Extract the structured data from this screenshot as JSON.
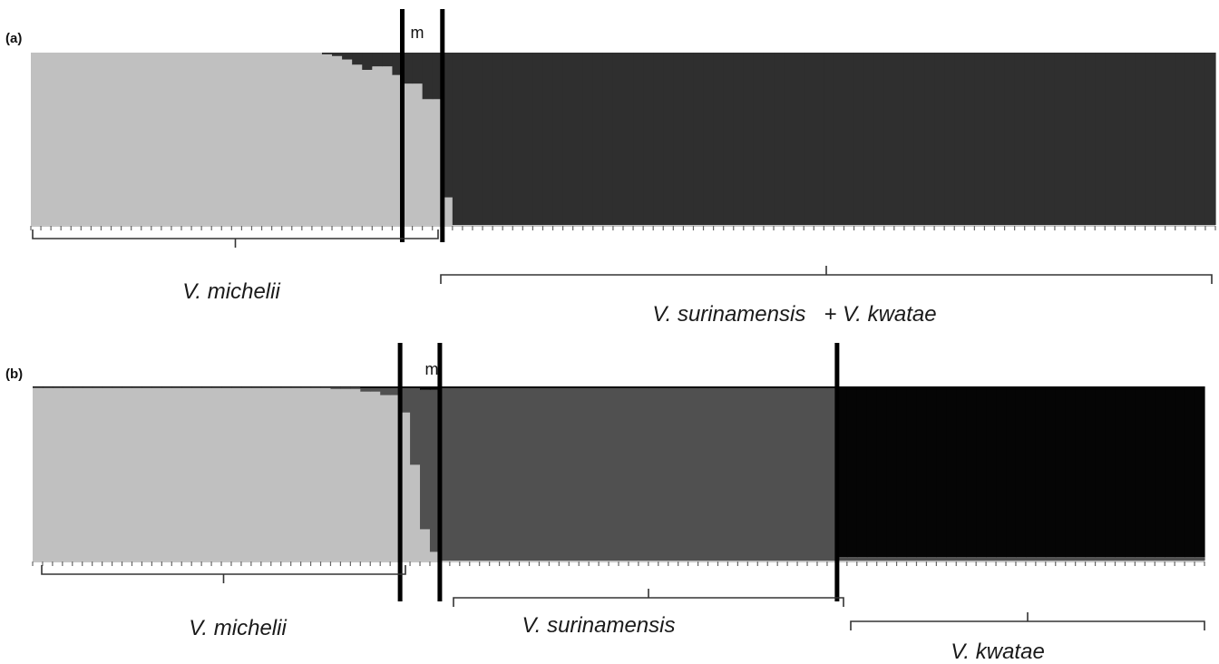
{
  "colors": {
    "cluster_light": "#c0c0c0",
    "cluster_mid": "#505050",
    "cluster_dark_a": "#2f2f2f",
    "cluster_dark_b": "#050505",
    "divider": "#000000",
    "bracket": "#333333"
  },
  "chart_data": [
    {
      "type": "bar",
      "stacked": true,
      "panel_label": "(a)",
      "marker_label": "m",
      "ylim": [
        0,
        1
      ],
      "n_individuals": 118,
      "divider_after_individual": [
        37,
        41
      ],
      "series": [
        {
          "color": "#c0c0c0",
          "segments": [
            {
              "count": 29,
              "value": 1.0
            },
            {
              "count": 1,
              "value": 0.99
            },
            {
              "count": 1,
              "value": 0.98
            },
            {
              "count": 1,
              "value": 0.96
            },
            {
              "count": 1,
              "value": 0.93
            },
            {
              "count": 1,
              "value": 0.9
            },
            {
              "count": 2,
              "value": 0.92
            },
            {
              "count": 1,
              "value": 0.87
            },
            {
              "count": 2,
              "value": 0.82
            },
            {
              "count": 2,
              "value": 0.73
            },
            {
              "count": 1,
              "value": 0.16
            },
            {
              "count": 76,
              "value": 0.0
            }
          ]
        },
        {
          "color": "#2f2f2f",
          "segments": [
            {
              "count": 29,
              "value": 0.0
            },
            {
              "count": 1,
              "value": 0.01
            },
            {
              "count": 1,
              "value": 0.02
            },
            {
              "count": 1,
              "value": 0.04
            },
            {
              "count": 1,
              "value": 0.07
            },
            {
              "count": 1,
              "value": 0.1
            },
            {
              "count": 2,
              "value": 0.08
            },
            {
              "count": 1,
              "value": 0.13
            },
            {
              "count": 2,
              "value": 0.18
            },
            {
              "count": 2,
              "value": 0.27
            },
            {
              "count": 1,
              "value": 0.84
            },
            {
              "count": 76,
              "value": 1.0
            }
          ]
        }
      ],
      "groups": [
        {
          "label": "V. michelii",
          "start": 0,
          "end": 41
        },
        {
          "label": "V. surinamensis   + V. kwatae",
          "start": 41,
          "end": 118
        }
      ]
    },
    {
      "type": "bar",
      "stacked": true,
      "panel_label": "(b)",
      "marker_label": "m",
      "ylim": [
        0,
        1
      ],
      "n_individuals": 118,
      "divider_after_individual": [
        37,
        41,
        81
      ],
      "series": [
        {
          "color": "#c0c0c0",
          "segments": [
            {
              "count": 30,
              "value": 0.99
            },
            {
              "count": 3,
              "value": 0.985
            },
            {
              "count": 2,
              "value": 0.97
            },
            {
              "count": 2,
              "value": 0.95
            },
            {
              "count": 1,
              "value": 0.85
            },
            {
              "count": 1,
              "value": 0.55
            },
            {
              "count": 1,
              "value": 0.18
            },
            {
              "count": 1,
              "value": 0.05
            },
            {
              "count": 40,
              "value": 0.0
            },
            {
              "count": 37,
              "value": 0.0
            }
          ]
        },
        {
          "color": "#505050",
          "segments": [
            {
              "count": 30,
              "value": 0.005
            },
            {
              "count": 3,
              "value": 0.01
            },
            {
              "count": 2,
              "value": 0.02
            },
            {
              "count": 2,
              "value": 0.04
            },
            {
              "count": 1,
              "value": 0.14
            },
            {
              "count": 1,
              "value": 0.44
            },
            {
              "count": 1,
              "value": 0.8
            },
            {
              "count": 1,
              "value": 0.93
            },
            {
              "count": 40,
              "value": 0.99
            },
            {
              "count": 37,
              "value": 0.02
            }
          ]
        },
        {
          "color": "#050505",
          "segments": [
            {
              "count": 30,
              "value": 0.005
            },
            {
              "count": 3,
              "value": 0.005
            },
            {
              "count": 2,
              "value": 0.01
            },
            {
              "count": 2,
              "value": 0.01
            },
            {
              "count": 1,
              "value": 0.01
            },
            {
              "count": 1,
              "value": 0.01
            },
            {
              "count": 1,
              "value": 0.02
            },
            {
              "count": 1,
              "value": 0.02
            },
            {
              "count": 40,
              "value": 0.01
            },
            {
              "count": 37,
              "value": 0.98
            }
          ]
        }
      ],
      "groups": [
        {
          "label": "V. michelii",
          "start": 0,
          "end": 37
        },
        {
          "label": "V. surinamensis",
          "start": 41,
          "end": 81
        },
        {
          "label": "V. kwatae",
          "start": 81,
          "end": 118
        }
      ]
    }
  ]
}
